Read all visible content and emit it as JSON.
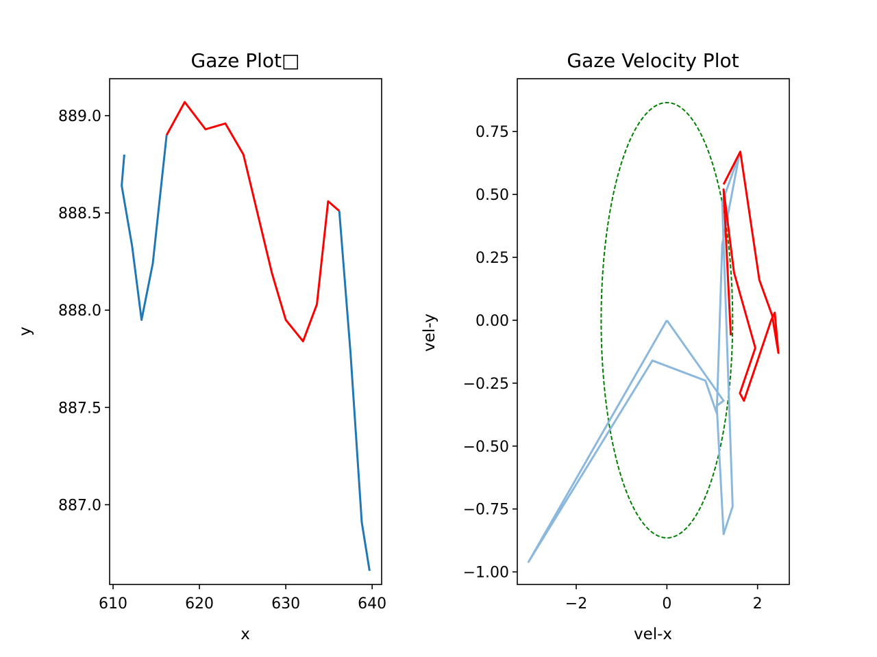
{
  "chart_data": [
    {
      "type": "line",
      "title": "Gaze Plot□",
      "xlabel": "x",
      "ylabel": "y",
      "xlim": [
        609.6,
        641.1
      ],
      "ylim": [
        886.59,
        889.19
      ],
      "xticks": [
        610,
        620,
        630,
        640
      ],
      "yticks": [
        887.0,
        887.5,
        888.0,
        888.5,
        889.0
      ],
      "ytick_labels": [
        "887.0",
        "887.5",
        "888.0",
        "888.5",
        "889.0"
      ],
      "series": [
        {
          "color": "#1f77b4",
          "x": [
            611.3,
            611.0,
            612.2,
            613.3,
            614.6,
            616.2
          ],
          "y": [
            888.8,
            888.64,
            888.33,
            887.95,
            888.24,
            888.9
          ]
        },
        {
          "color": "#ff0000",
          "x": [
            616.2,
            618.3,
            620.7,
            623.0,
            625.1,
            628.4,
            630.0,
            632.0,
            633.6,
            634.9,
            636.2
          ],
          "y": [
            888.9,
            889.07,
            888.93,
            888.96,
            888.8,
            888.19,
            887.95,
            887.84,
            888.03,
            888.56,
            888.51
          ]
        },
        {
          "color": "#1f77b4",
          "x": [
            636.2,
            637.5,
            638.8,
            639.7
          ],
          "y": [
            888.51,
            887.78,
            886.91,
            886.66
          ]
        }
      ]
    },
    {
      "type": "line",
      "title": "Gaze Velocity Plot",
      "xlabel": "vel-x",
      "ylabel": "vel-y",
      "xlim": [
        -3.3,
        2.7
      ],
      "ylim": [
        -1.05,
        0.96
      ],
      "xticks": [
        -2,
        0,
        2
      ],
      "xtick_labels": [
        "−2",
        "0",
        "2"
      ],
      "yticks": [
        -1.0,
        -0.75,
        -0.5,
        -0.25,
        0.0,
        0.25,
        0.5,
        0.75
      ],
      "ytick_labels": [
        "−1.00",
        "−0.75",
        "−0.50",
        "−0.25",
        "0.00",
        "0.25",
        "0.50",
        "0.75"
      ],
      "ellipse": {
        "cx": 0,
        "cy": 0,
        "rx": 1.45,
        "ry": 0.865,
        "color": "#008000",
        "style": "dashed"
      },
      "series": [
        {
          "color": "#8bb8dc",
          "x": [
            0.0,
            -3.05,
            -0.32,
            0.85,
            1.1,
            1.22,
            1.6,
            1.22,
            1.45,
            1.25,
            1.1,
            1.25,
            0.0
          ],
          "y": [
            0.0,
            -0.96,
            -0.16,
            -0.24,
            -0.37,
            0.3,
            0.66,
            0.47,
            -0.74,
            -0.85,
            -0.34,
            -0.32,
            0.0
          ]
        },
        {
          "color": "#ff0000",
          "x": [
            1.41,
            1.25,
            1.48,
            1.95,
            1.61,
            1.7,
            2.02,
            2.3,
            2.38,
            2.46,
            2.32,
            2.04,
            1.62,
            1.25
          ],
          "y": [
            -0.06,
            0.52,
            0.19,
            -0.11,
            -0.29,
            -0.32,
            -0.15,
            0.0,
            0.03,
            -0.13,
            0.02,
            0.16,
            0.67,
            0.54
          ]
        }
      ]
    }
  ]
}
